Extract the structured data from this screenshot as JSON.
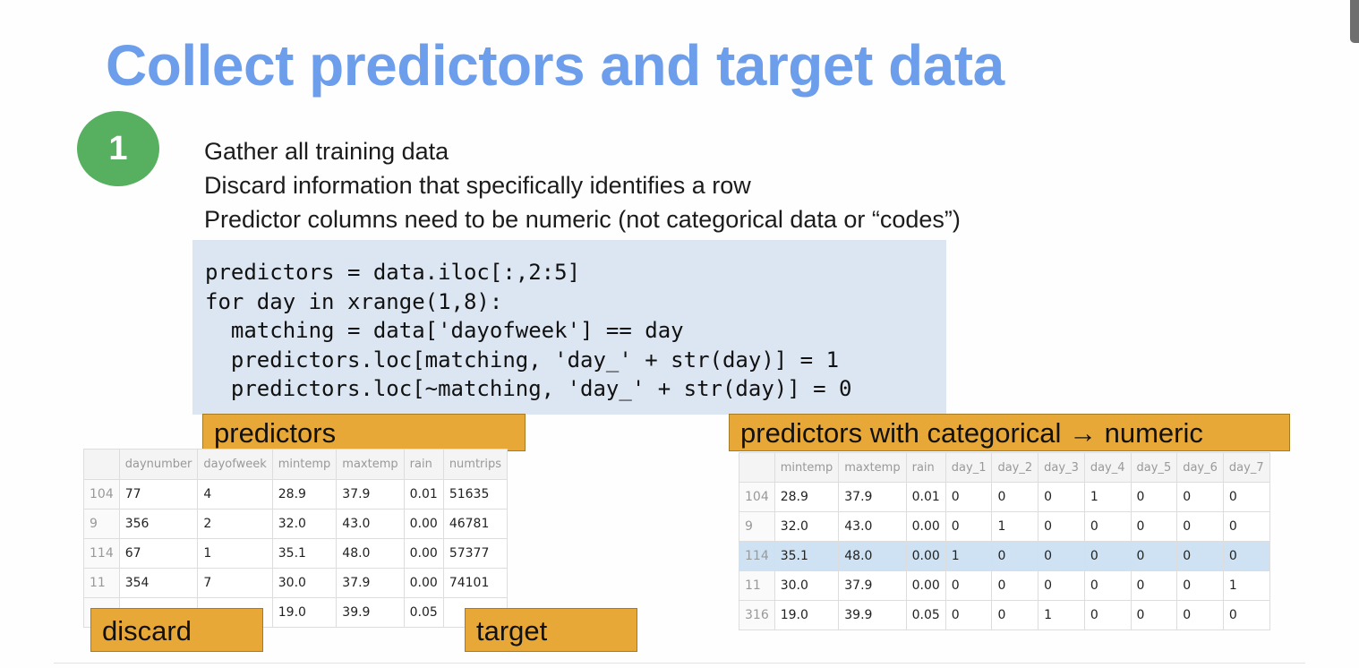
{
  "slide": {
    "title": "Collect predictors and target data",
    "step_number": "1",
    "bullets": [
      "Gather all training data",
      "Discard information that specifically identifies a row",
      "Predictor columns need to be numeric (not categorical data or “codes”)"
    ],
    "code": "predictors = data.iloc[:,2:5]\nfor day in xrange(1,8):\n  matching = data['dayofweek'] == day\n  predictors.loc[matching, 'day_' + str(day)] = 1\n  predictors.loc[~matching, 'day_' + str(day)] = 0"
  },
  "labels": {
    "predictors": "predictors",
    "categorical": "predictors with categorical → numeric",
    "discard": "discard",
    "target": "target"
  },
  "left_table": {
    "columns": [
      "",
      "daynumber",
      "dayofweek",
      "mintemp",
      "maxtemp",
      "rain",
      "numtrips"
    ],
    "rows": [
      [
        "104",
        "77",
        "4",
        "28.9",
        "37.9",
        "0.01",
        "51635"
      ],
      [
        "9",
        "356",
        "2",
        "32.0",
        "43.0",
        "0.00",
        "46781"
      ],
      [
        "114",
        "67",
        "1",
        "35.1",
        "48.0",
        "0.00",
        "57377"
      ],
      [
        "11",
        "354",
        "7",
        "30.0",
        "37.9",
        "0.00",
        "74101"
      ],
      [
        "",
        "",
        "",
        "19.0",
        "39.9",
        "0.05",
        ""
      ]
    ]
  },
  "right_table": {
    "columns": [
      "",
      "mintemp",
      "maxtemp",
      "rain",
      "day_1",
      "day_2",
      "day_3",
      "day_4",
      "day_5",
      "day_6",
      "day_7"
    ],
    "rows": [
      [
        "104",
        "28.9",
        "37.9",
        "0.01",
        "0",
        "0",
        "0",
        "1",
        "0",
        "0",
        "0"
      ],
      [
        "9",
        "32.0",
        "43.0",
        "0.00",
        "0",
        "1",
        "0",
        "0",
        "0",
        "0",
        "0"
      ],
      [
        "114",
        "35.1",
        "48.0",
        "0.00",
        "1",
        "0",
        "0",
        "0",
        "0",
        "0",
        "0"
      ],
      [
        "11",
        "30.0",
        "37.9",
        "0.00",
        "0",
        "0",
        "0",
        "0",
        "0",
        "0",
        "1"
      ],
      [
        "316",
        "19.0",
        "39.9",
        "0.05",
        "0",
        "0",
        "1",
        "0",
        "0",
        "0",
        "0"
      ]
    ],
    "highlighted_row_index": 2
  }
}
